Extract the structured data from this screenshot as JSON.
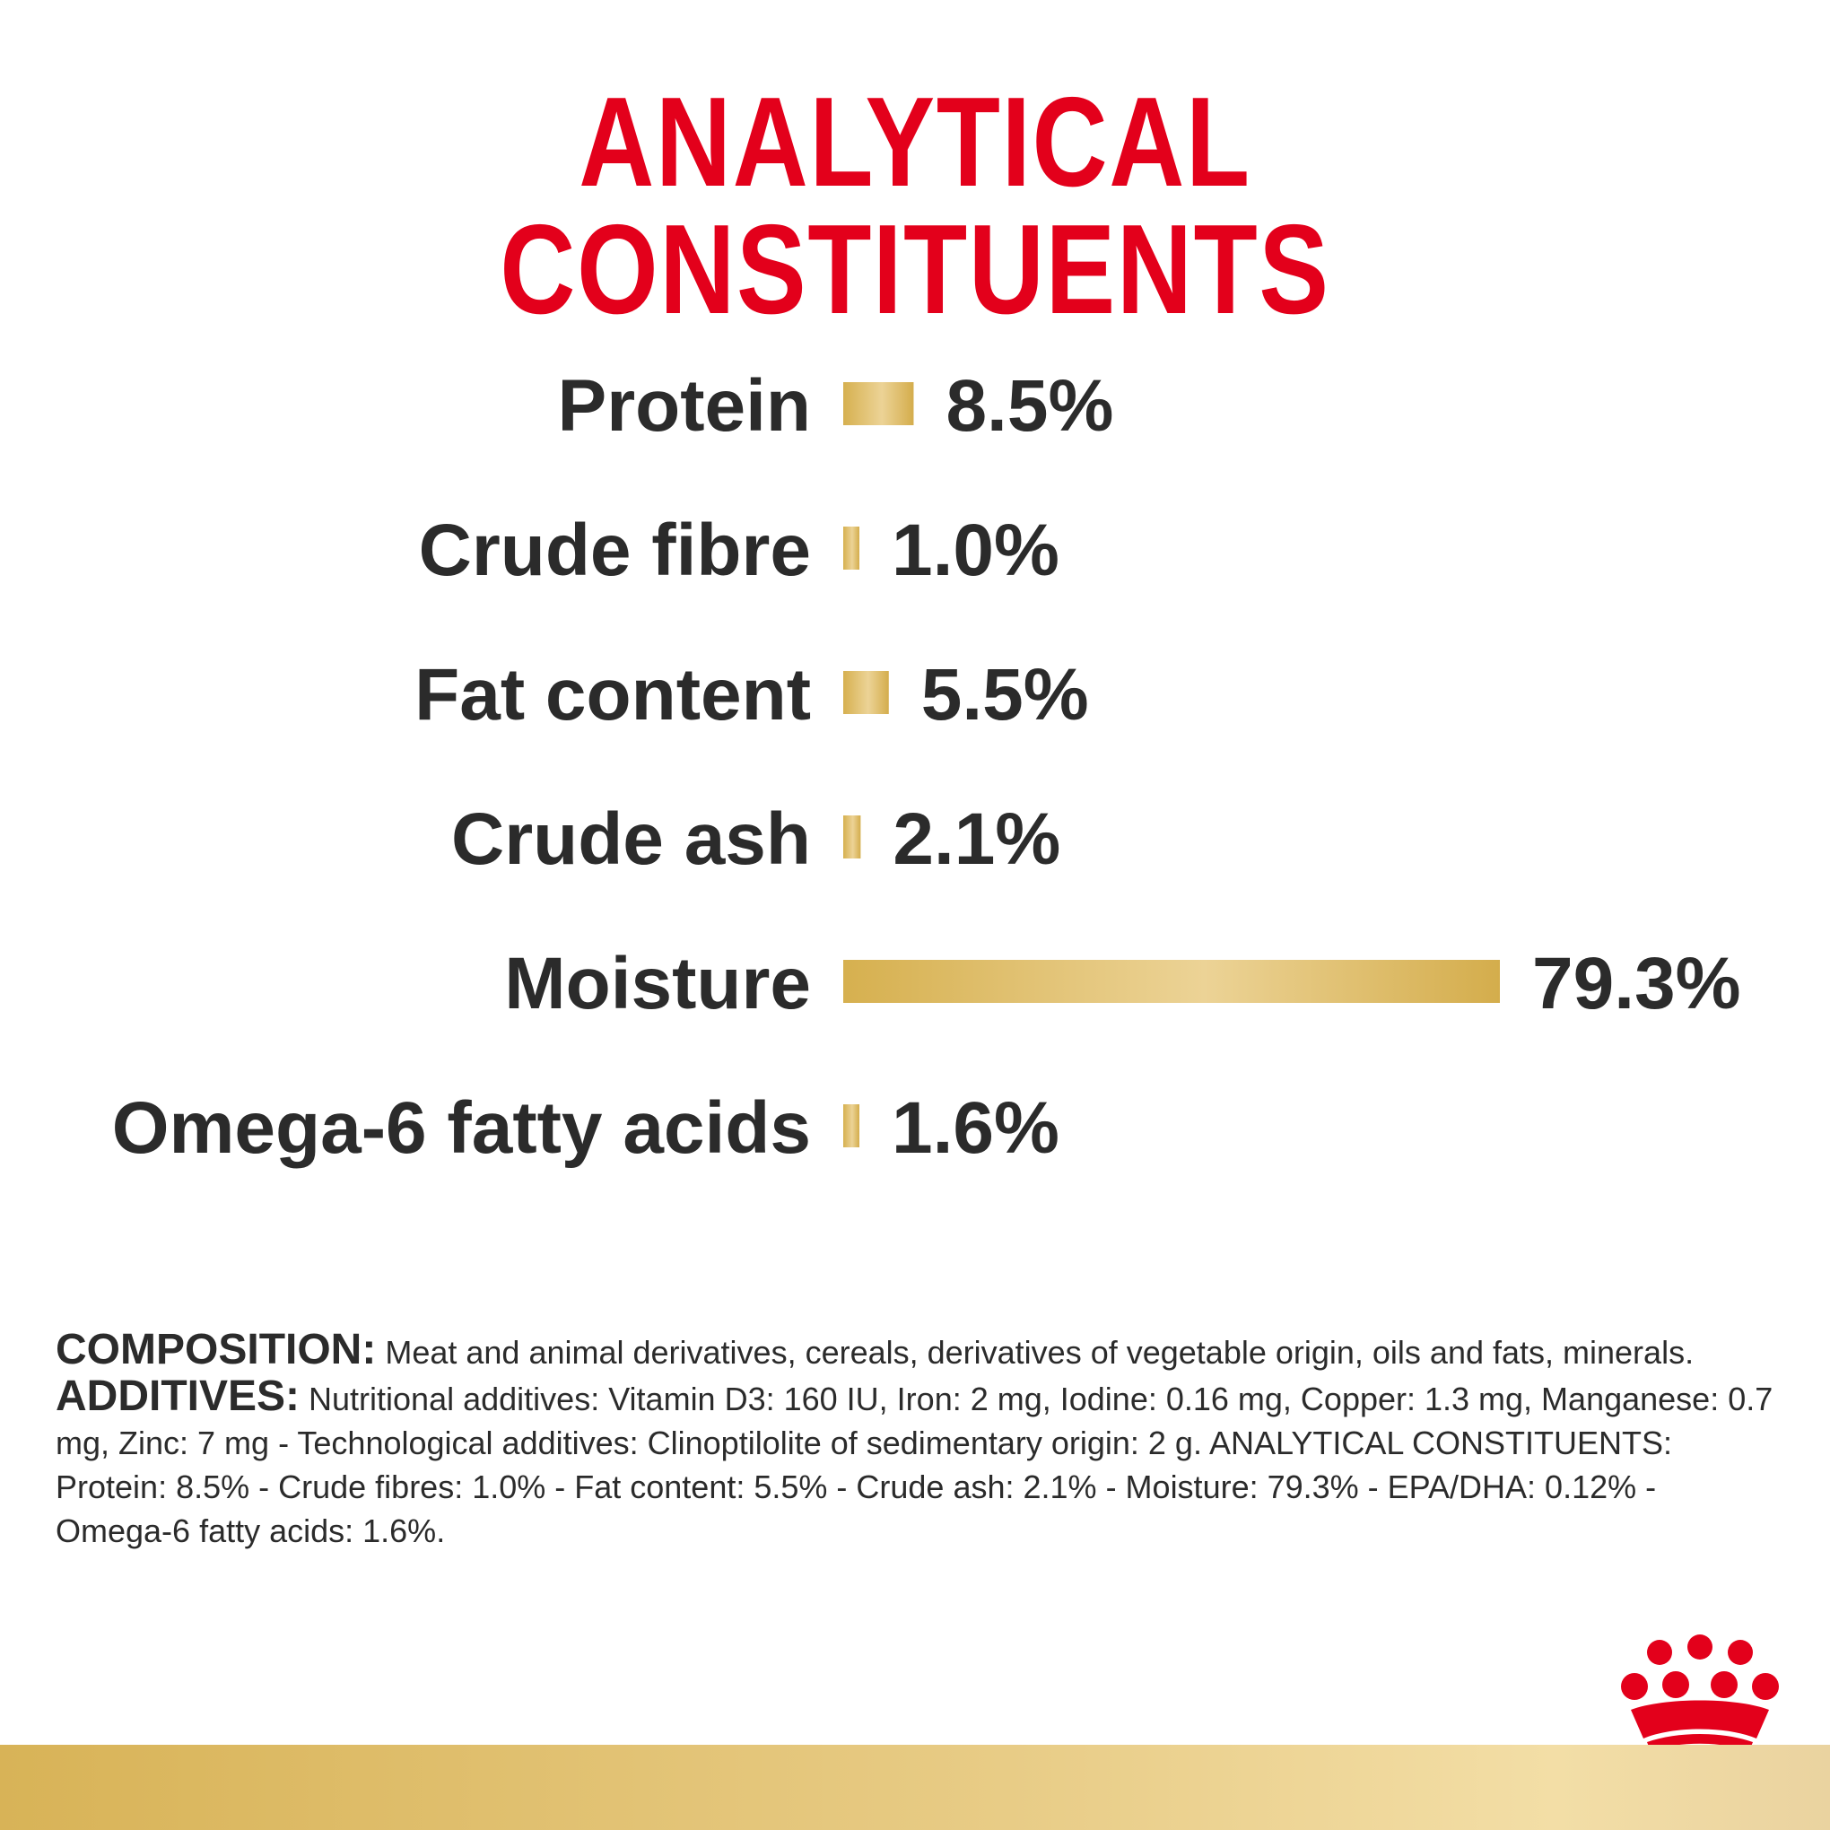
{
  "title": "ANALYTICAL CONSTITUENTS",
  "chart_data": {
    "type": "bar",
    "orientation": "horizontal",
    "title": "ANALYTICAL CONSTITUENTS",
    "categories": [
      "Protein",
      "Crude fibre",
      "Fat content",
      "Crude ash",
      "Moisture",
      "Omega-6 fatty acids"
    ],
    "values": [
      8.5,
      1.0,
      5.5,
      2.1,
      79.3,
      1.6
    ],
    "value_labels": [
      "8.5%",
      "1.0%",
      "5.5%",
      "2.1%",
      "79.3%",
      "1.6%"
    ],
    "unit": "%",
    "xlim": [
      0,
      79.3
    ],
    "grid": false
  },
  "composition": {
    "composition_label": "COMPOSITION:",
    "composition_text": "Meat and animal derivatives, cereals, derivatives of vegetable origin, oils and fats, minerals.",
    "additives_label": "ADDITIVES:",
    "additives_text": "Nutritional additives: Vitamin D3: 160 IU, Iron: 2 mg, Iodine: 0.16 mg, Copper: 1.3 mg, Manganese: 0.7 mg, Zinc: 7 mg - Technological additives: Clinoptilolite of sedimentary origin: 2 g. ANALYTICAL CONSTITUENTS: Protein: 8.5% - Crude fibres: 1.0% - Fat content: 5.5% - Crude ash: 2.1% - Moisture: 79.3% - EPA/DHA: 0.12% - Omega-6 fatty acids: 1.6%."
  },
  "colors": {
    "title": "#e3001b",
    "bar_dark": "#d6b04f",
    "bar_light": "#ecd396",
    "text": "#2b2b2b",
    "logo": "#e3001b"
  },
  "logo": {
    "icon": "crown-logo-icon"
  }
}
